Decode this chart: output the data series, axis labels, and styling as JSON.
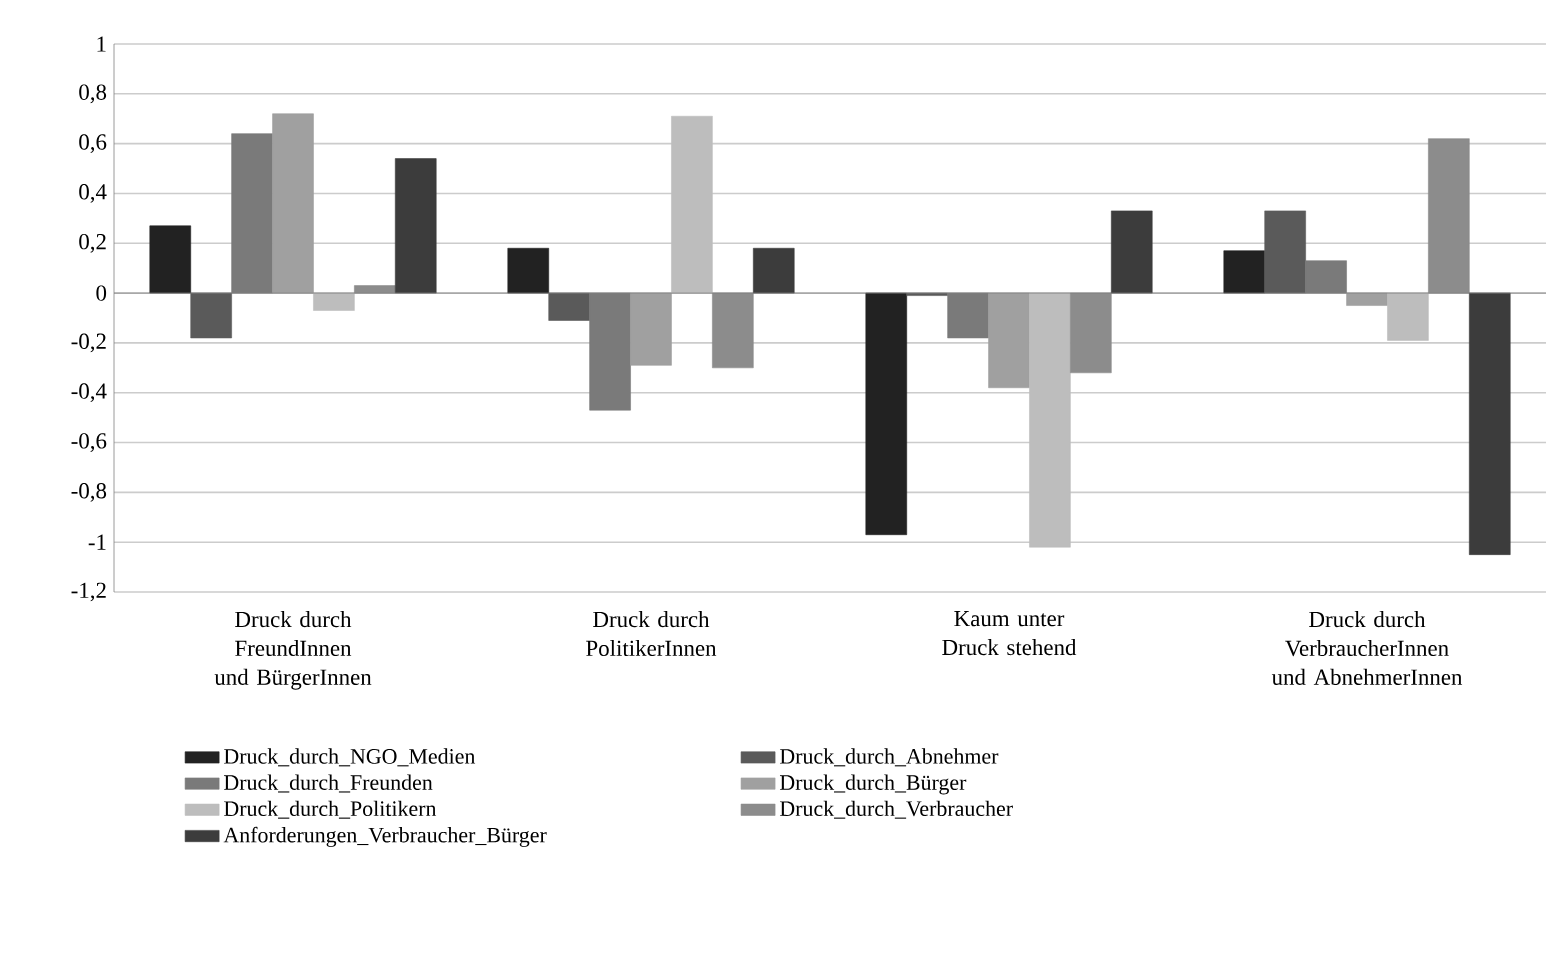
{
  "chart_data": {
    "type": "bar",
    "categories": [
      "Druck durch FreundInnen und BürgerInnen",
      "Druck durch PolitikerInnen",
      "Kaum unter Druck stehend",
      "Druck durch VerbraucherInnen und AbnehmerInnen"
    ],
    "series": [
      {
        "name": "Druck_durch_NGO_Medien",
        "color": "#222222",
        "values": [
          0.27,
          0.18,
          -0.97,
          0.17
        ]
      },
      {
        "name": "Druck_durch_Abnehmer",
        "color": "#5a5a5a",
        "values": [
          -0.18,
          -0.11,
          -0.01,
          0.33
        ]
      },
      {
        "name": "Druck_durch_Freunden",
        "color": "#7a7a7a",
        "values": [
          0.64,
          -0.47,
          -0.18,
          0.13
        ]
      },
      {
        "name": "Druck_durch_Bürger",
        "color": "#a0a0a0",
        "values": [
          0.72,
          -0.29,
          -0.38,
          -0.05
        ]
      },
      {
        "name": "Druck_durch_Politikern",
        "color": "#bdbdbd",
        "values": [
          -0.07,
          0.71,
          -1.02,
          -0.19
        ]
      },
      {
        "name": "Druck_durch_Verbraucher",
        "color": "#8c8c8c",
        "values": [
          0.03,
          -0.3,
          -0.32,
          0.62
        ]
      },
      {
        "name": "Anforderungen_Verbraucher_Bürger",
        "color": "#3c3c3c",
        "values": [
          0.54,
          0.18,
          0.33,
          -1.05
        ]
      }
    ],
    "ylim": [
      -1.2,
      1
    ],
    "yticks": [
      {
        "value": -1.2,
        "label": "-1,2"
      },
      -1,
      {
        "value": -0.8,
        "label": "-0,8"
      },
      {
        "value": -0.6,
        "label": "-0,6"
      },
      {
        "value": -0.4,
        "label": "-0,4"
      },
      {
        "value": -0.2,
        "label": "-0,2"
      },
      0,
      {
        "value": 0.2,
        "label": "0,2"
      },
      {
        "value": 0.4,
        "label": "0,4"
      },
      {
        "value": 0.6,
        "label": "0,6"
      },
      {
        "value": 0.8,
        "label": "0,8"
      },
      1
    ],
    "grid": "y",
    "legend": "bottom"
  }
}
